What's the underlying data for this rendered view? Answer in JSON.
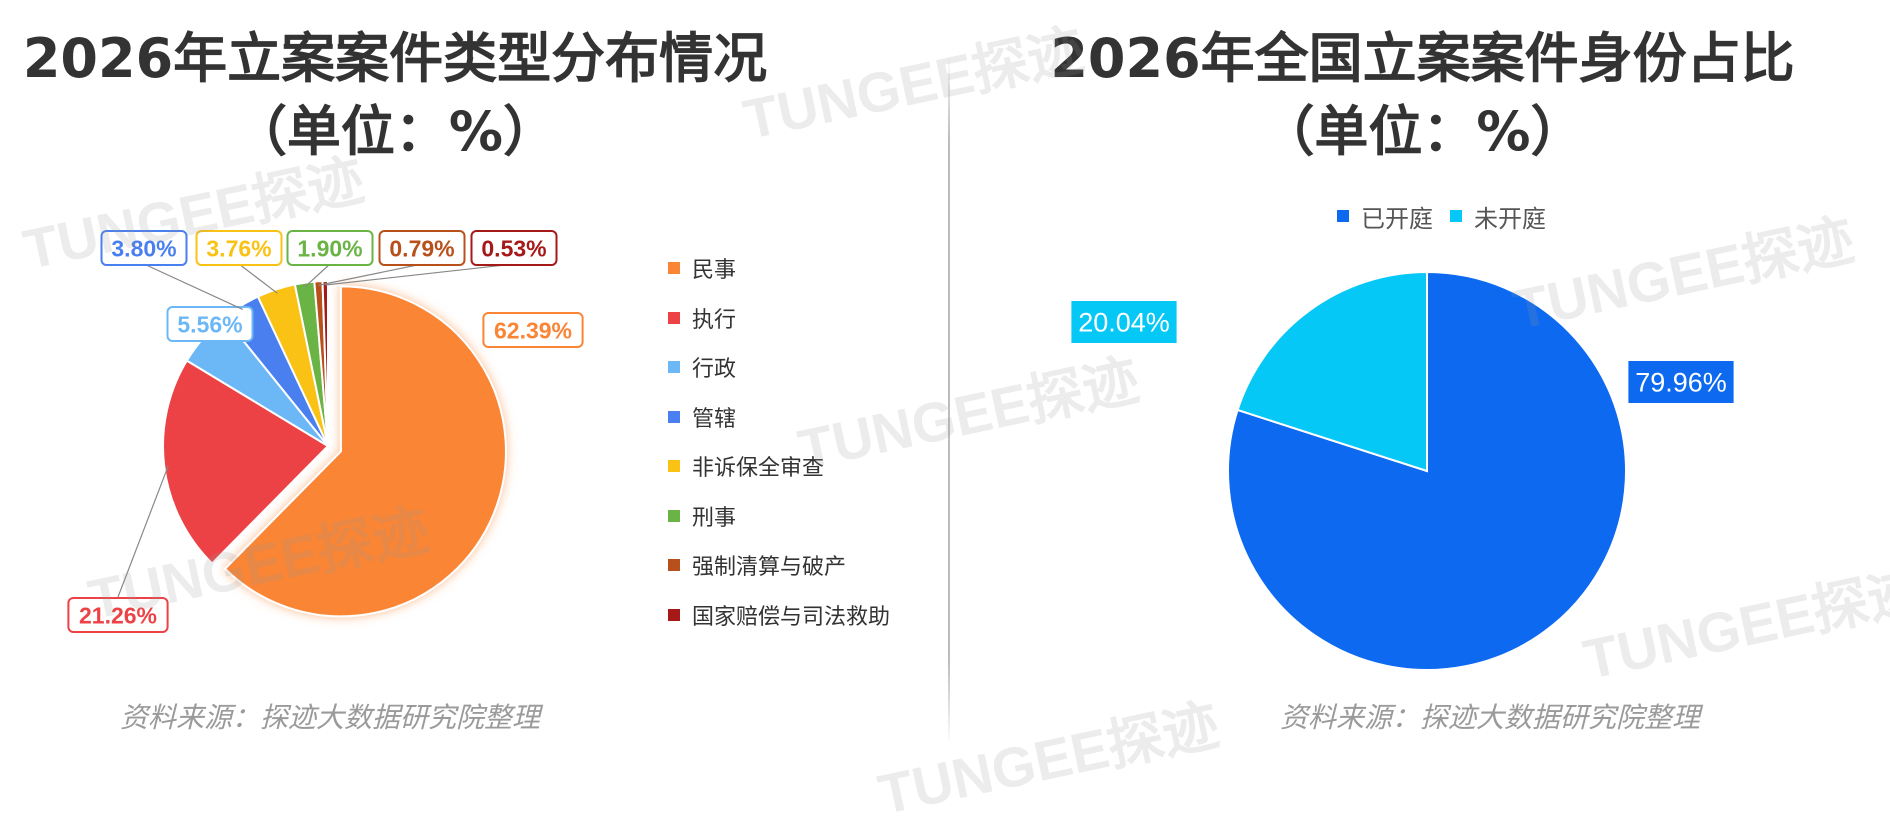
{
  "chart_data": [
    {
      "type": "pie",
      "title": "2026年立案案件类型分布情况",
      "subtitle": "（单位：%）",
      "categories": [
        "民事",
        "执行",
        "行政",
        "管辖",
        "非诉保全审查",
        "刑事",
        "强制清算与破产",
        "国家赔偿与司法救助"
      ],
      "values": [
        62.39,
        21.26,
        5.56,
        3.8,
        3.76,
        1.9,
        0.79,
        0.53
      ],
      "data_labels": [
        "62.39%",
        "21.26%",
        "5.56%",
        "3.80%",
        "3.76%",
        "1.90%",
        "0.79%",
        "0.53%"
      ],
      "colors": [
        "#f98535",
        "#ec4245",
        "#6cb8f6",
        "#4a7ff0",
        "#f9c215",
        "#6ab445",
        "#b8501c",
        "#a51919"
      ],
      "exploded": "民事",
      "legend_position": "right",
      "source": "资料来源：探迹大数据研究院整理"
    },
    {
      "type": "pie",
      "title": "2026年全国立案案件身份占比",
      "subtitle": "（单位：%）",
      "categories": [
        "已开庭",
        "未开庭"
      ],
      "values": [
        79.96,
        20.04
      ],
      "data_labels": [
        "79.96%",
        "20.04%"
      ],
      "colors": [
        "#0d6af0",
        "#06c8f6"
      ],
      "legend_position": "top",
      "source": "资料来源：探迹大数据研究院整理"
    }
  ],
  "watermark": "TUNGEE探迹"
}
